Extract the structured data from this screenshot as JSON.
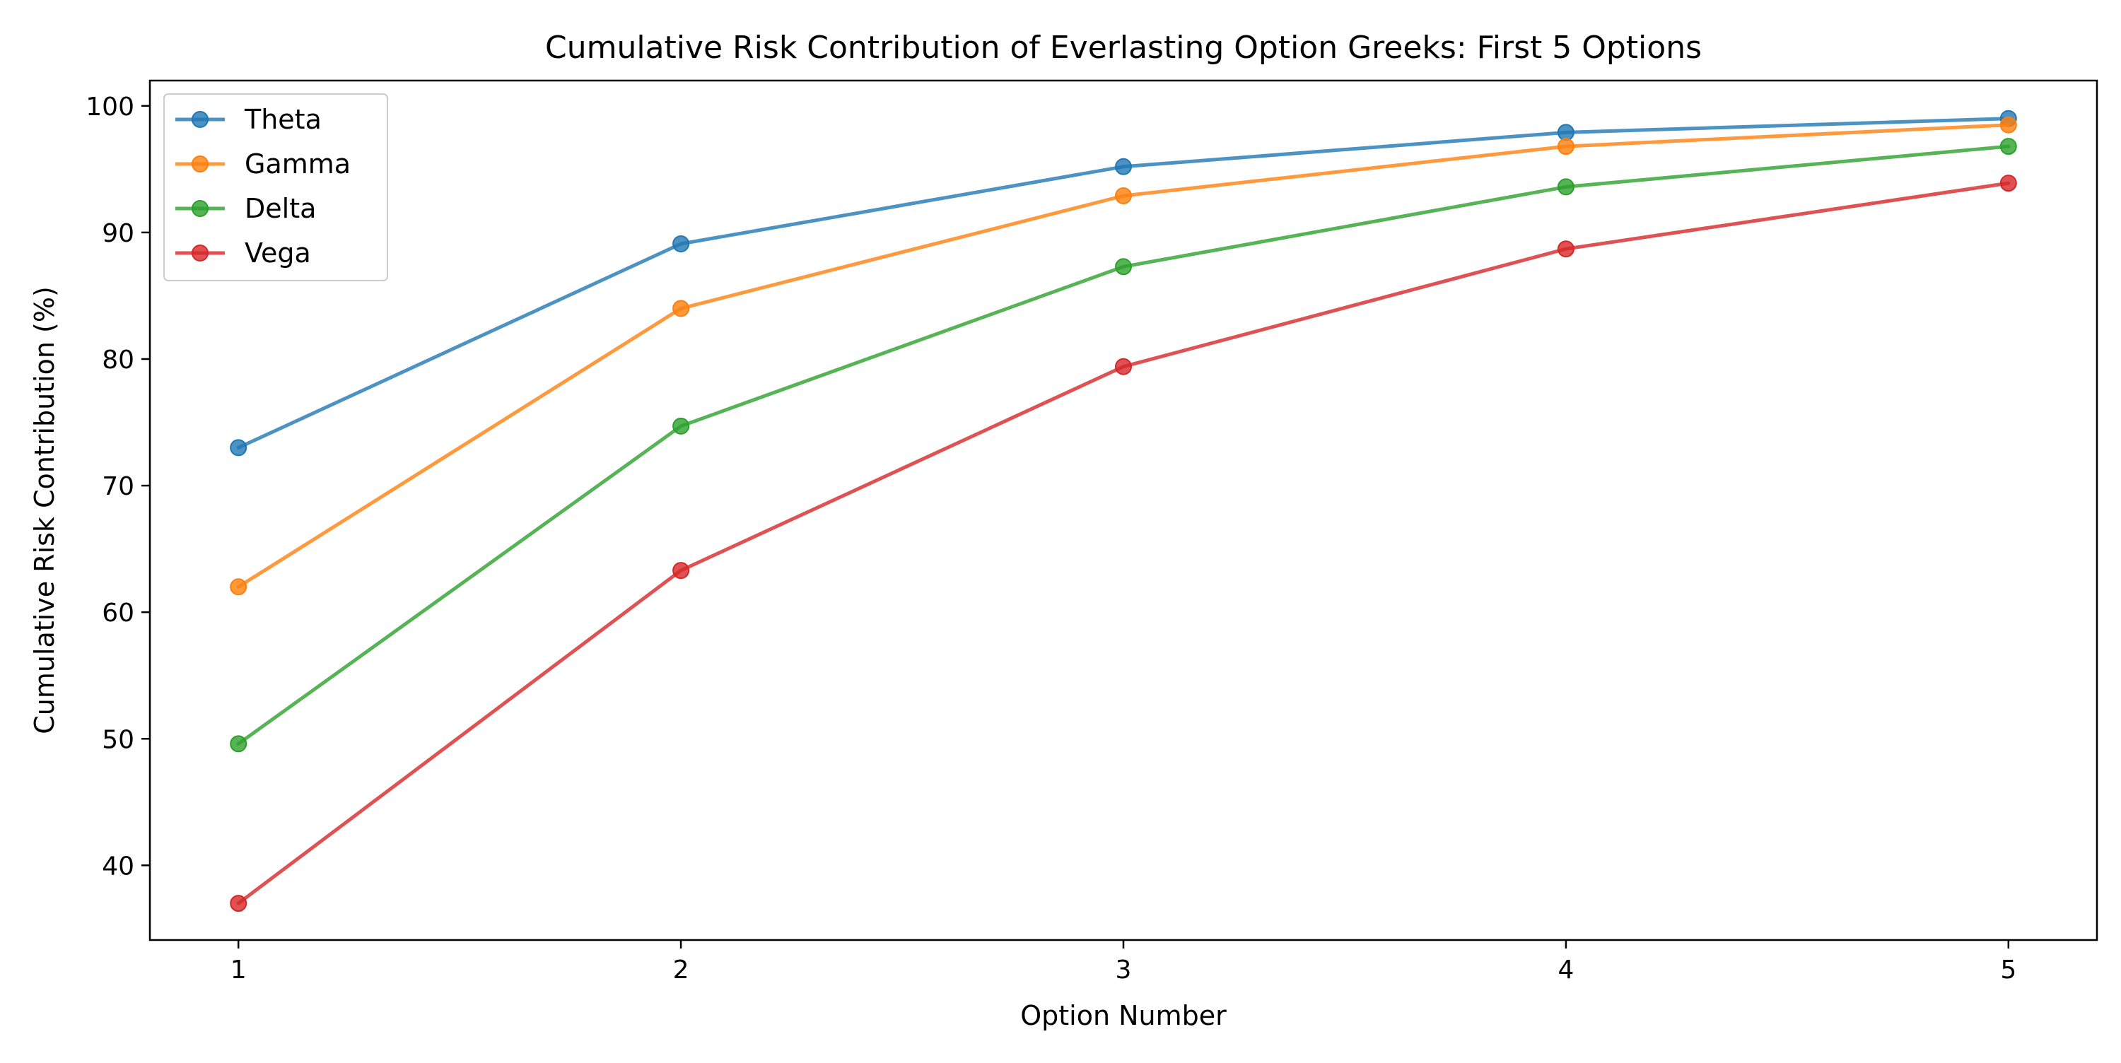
{
  "chart_data": {
    "type": "line",
    "title": "Cumulative Risk Contribution of Everlasting Option Greeks: First 5 Options",
    "xlabel": "Option Number",
    "ylabel": "Cumulative Risk Contribution (%)",
    "x": [
      1,
      2,
      3,
      4,
      5
    ],
    "xlim": [
      0.8,
      5.2
    ],
    "ylim": [
      34.1,
      102.0
    ],
    "xticks": [
      "1",
      "2",
      "3",
      "4",
      "5"
    ],
    "yticks": [
      "40",
      "50",
      "60",
      "70",
      "80",
      "90",
      "100"
    ],
    "grid": false,
    "legend_position": "upper-left",
    "series": [
      {
        "name": "Theta",
        "color": "#1f77b4",
        "values": [
          73.0,
          89.1,
          95.2,
          97.9,
          99.0
        ]
      },
      {
        "name": "Gamma",
        "color": "#ff7f0e",
        "values": [
          62.0,
          84.0,
          92.9,
          96.8,
          98.5
        ]
      },
      {
        "name": "Delta",
        "color": "#2ca02c",
        "values": [
          49.6,
          74.7,
          87.3,
          93.6,
          96.8
        ]
      },
      {
        "name": "Vega",
        "color": "#d62728",
        "values": [
          37.0,
          63.3,
          79.4,
          88.7,
          93.9
        ]
      }
    ]
  }
}
